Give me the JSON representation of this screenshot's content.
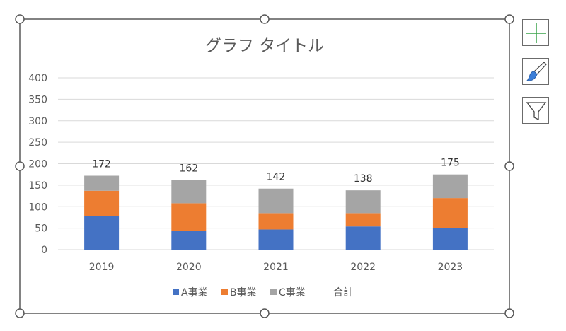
{
  "chart_data": {
    "type": "bar",
    "stacked": true,
    "title": "グラフ タイトル",
    "categories": [
      "2019",
      "2020",
      "2021",
      "2022",
      "2023"
    ],
    "series": [
      {
        "name": "A事業",
        "values": [
          79,
          43,
          47,
          54,
          50
        ],
        "color": "#4472C4"
      },
      {
        "name": "B事業",
        "values": [
          58,
          65,
          38,
          31,
          70
        ],
        "color": "#ED7D31"
      },
      {
        "name": "C事業",
        "values": [
          35,
          54,
          57,
          53,
          55
        ],
        "color": "#A5A5A5"
      }
    ],
    "totals": {
      "name": "合計",
      "values": [
        172,
        162,
        142,
        138,
        175
      ]
    },
    "ylim": [
      0,
      400
    ],
    "yticks": [
      "0",
      "50",
      "100",
      "150",
      "200",
      "250",
      "300",
      "350",
      "400"
    ],
    "grid": true,
    "legend_position": "bottom",
    "xlabel": "",
    "ylabel": ""
  },
  "side_buttons": [
    "plus-icon",
    "brush-icon",
    "filter-icon"
  ],
  "colors": {
    "grid": "#D9D9D9",
    "text": "#595959",
    "border": "#595959"
  }
}
